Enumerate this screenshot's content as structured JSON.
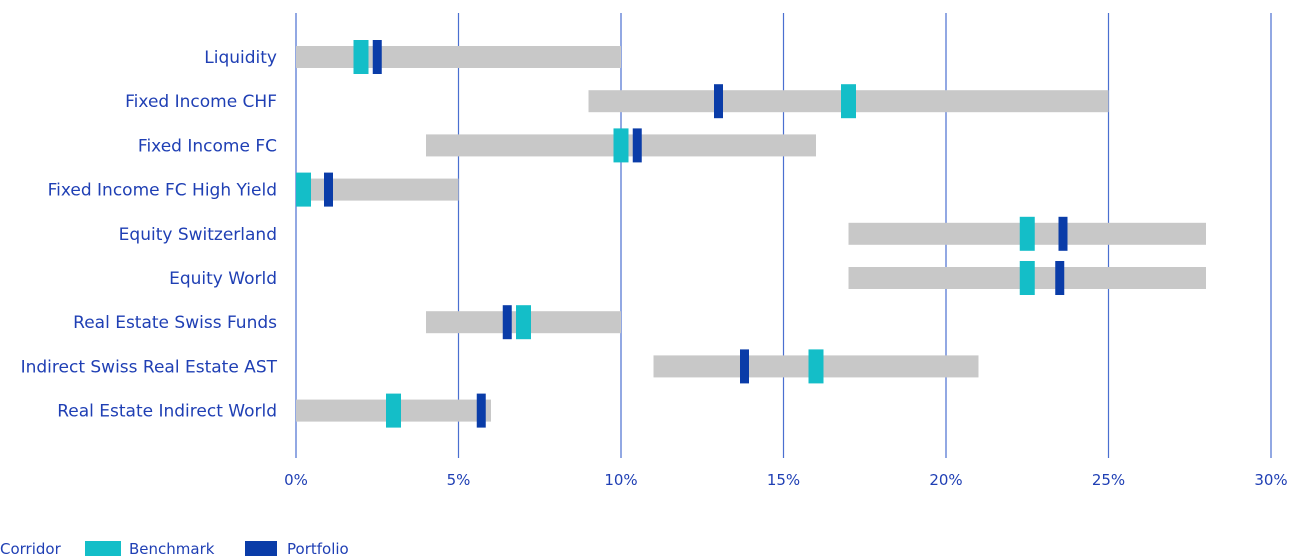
{
  "chart_data": {
    "type": "bar",
    "title": "",
    "xlabel": "",
    "ylabel": "",
    "xlim": [
      0,
      30
    ],
    "x_ticks": [
      0,
      5,
      10,
      15,
      20,
      25,
      30
    ],
    "x_tick_labels": [
      "0%",
      "5%",
      "10%",
      "15%",
      "20%",
      "25%",
      "30%"
    ],
    "grid": "vertical",
    "categories": [
      "Liquidity",
      "Fixed Income CHF",
      "Fixed Income FC",
      "Fixed Income FC High Yield",
      "Equity Switzerland",
      "Equity World",
      "Real Estate Swiss Funds",
      "Indirect Swiss Real Estate AST",
      "Real Estate Indirect World"
    ],
    "series": [
      {
        "name": "Corridor",
        "kind": "range",
        "values": [
          [
            0,
            10
          ],
          [
            9,
            25
          ],
          [
            4,
            16
          ],
          [
            0,
            5
          ],
          [
            17,
            28
          ],
          [
            17,
            28
          ],
          [
            4,
            10
          ],
          [
            11,
            21
          ],
          [
            0,
            6
          ]
        ]
      },
      {
        "name": "Benchmark",
        "kind": "marker",
        "values": [
          2,
          17,
          10,
          0,
          22.5,
          22.5,
          7,
          16,
          3
        ]
      },
      {
        "name": "Portfolio",
        "kind": "marker",
        "values": [
          2.5,
          13,
          10.5,
          1,
          23.6,
          23.5,
          6.5,
          13.8,
          5.7
        ]
      }
    ],
    "legend_position": "bottom-left",
    "colors": {
      "Corridor": "#c8c8c8",
      "Benchmark": "#14bec8",
      "Portfolio": "#0a3ca8",
      "gridline": "#4a6fd0",
      "text": "#1f3fb4"
    }
  }
}
